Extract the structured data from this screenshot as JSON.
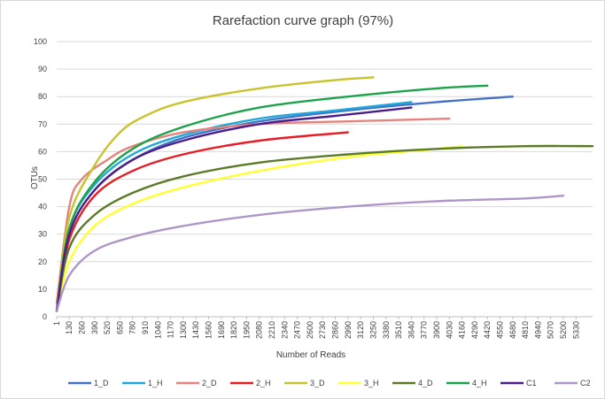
{
  "chart_data": {
    "type": "line",
    "title": "Rarefaction curve graph (97%)",
    "xlabel": "Number  of Reads",
    "ylabel": "OTUs",
    "ylim": [
      0,
      100
    ],
    "yticks": [
      0,
      10,
      20,
      30,
      40,
      50,
      60,
      70,
      80,
      90,
      100
    ],
    "xlim": [
      1,
      5500
    ],
    "x_tick_labels": [
      "1",
      "130",
      "260",
      "390",
      "520",
      "650",
      "780",
      "910",
      "1040",
      "1170",
      "1300",
      "1430",
      "1560",
      "1690",
      "1820",
      "1950",
      "2080",
      "2210",
      "2340",
      "2470",
      "2600",
      "2730",
      "2860",
      "2990",
      "3120",
      "3250",
      "3380",
      "3510",
      "3640",
      "3770",
      "3900",
      "4030",
      "4160",
      "4290",
      "4420",
      "4550",
      "4680",
      "4810",
      "4940",
      "5070",
      "5200",
      "5330"
    ],
    "grid": "horizontal",
    "legend_position": "bottom",
    "series": [
      {
        "name": "1_D",
        "color": "#4472C4",
        "x": [
          1,
          130,
          390,
          780,
          1300,
          2080,
          2990,
          3900,
          4680
        ],
        "y": [
          2,
          30,
          46,
          57,
          65,
          71,
          75,
          78,
          80
        ]
      },
      {
        "name": "1_H",
        "color": "#1FA9D9",
        "x": [
          1,
          130,
          390,
          780,
          1300,
          2080,
          2860,
          3640
        ],
        "y": [
          2,
          32,
          48,
          59,
          66,
          72,
          75,
          78
        ]
      },
      {
        "name": "2_D",
        "color": "#E5837C",
        "x": [
          1,
          130,
          260,
          520,
          780,
          1300,
          2080,
          2990,
          4030
        ],
        "y": [
          5,
          40,
          50,
          57,
          62,
          67,
          70,
          71,
          72
        ]
      },
      {
        "name": "2_H",
        "color": "#E81C24",
        "x": [
          1,
          130,
          390,
          780,
          1300,
          2080,
          2990
        ],
        "y": [
          2,
          28,
          44,
          53,
          59,
          64,
          67
        ]
      },
      {
        "name": "3_D",
        "color": "#C8C42E",
        "x": [
          1,
          130,
          390,
          650,
          910,
          1300,
          2080,
          2860,
          3250
        ],
        "y": [
          2,
          36,
          55,
          67,
          73,
          78,
          83,
          86,
          87
        ]
      },
      {
        "name": "3_H",
        "color": "#FFFF33",
        "x": [
          1,
          130,
          390,
          780,
          1300,
          2080,
          2990,
          3900,
          4160
        ],
        "y": [
          2,
          20,
          33,
          41,
          47,
          53,
          58,
          61,
          62
        ]
      },
      {
        "name": "4_D",
        "color": "#5B7B26",
        "x": [
          1,
          130,
          390,
          780,
          1300,
          2080,
          2990,
          3900,
          4810,
          5500
        ],
        "y": [
          2,
          25,
          37,
          45,
          51,
          56,
          59,
          61,
          62,
          62
        ]
      },
      {
        "name": "4_H",
        "color": "#1CA34A",
        "x": [
          1,
          130,
          390,
          780,
          1300,
          2080,
          2990,
          3900,
          4420
        ],
        "y": [
          2,
          32,
          49,
          61,
          69,
          76,
          80,
          83,
          84
        ]
      },
      {
        "name": "C1",
        "color": "#4C1E8C",
        "x": [
          1,
          130,
          390,
          780,
          1300,
          2080,
          2860,
          3640
        ],
        "y": [
          2,
          30,
          46,
          57,
          64,
          70,
          73,
          76
        ]
      },
      {
        "name": "C2",
        "color": "#AF96C8",
        "x": [
          1,
          130,
          390,
          780,
          1300,
          2080,
          2990,
          3900,
          4810,
          5200
        ],
        "y": [
          2,
          15,
          24,
          29,
          33,
          37,
          40,
          42,
          43,
          44
        ]
      }
    ]
  }
}
